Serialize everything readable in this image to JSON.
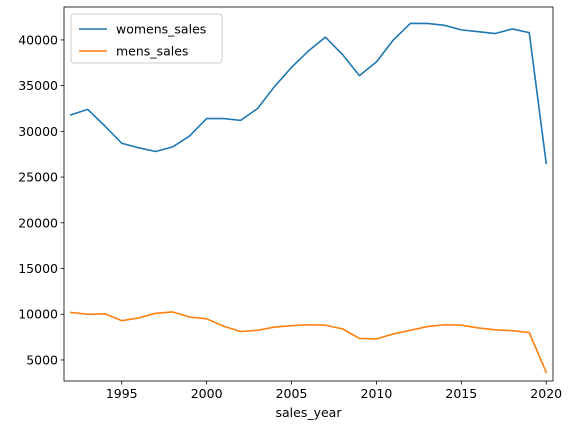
{
  "chart_data": {
    "type": "line",
    "title": "",
    "xlabel": "sales_year",
    "ylabel": "",
    "xlim": [
      1991.6,
      2020.4
    ],
    "ylim": [
      2700,
      43600
    ],
    "xticks": [
      1995,
      2000,
      2005,
      2010,
      2015,
      2020
    ],
    "yticks": [
      5000,
      10000,
      15000,
      20000,
      25000,
      30000,
      35000,
      40000,
      45000
    ],
    "grid": false,
    "legend_position": "top-left",
    "x": [
      1992,
      1993,
      1994,
      1995,
      1996,
      1997,
      1998,
      1999,
      2000,
      2001,
      2002,
      2003,
      2004,
      2005,
      2006,
      2007,
      2008,
      2009,
      2010,
      2011,
      2012,
      2013,
      2014,
      2015,
      2016,
      2017,
      2018,
      2019,
      2020
    ],
    "series": [
      {
        "name": "womens_sales",
        "color": "#1f77b4",
        "values": [
          31800,
          32400,
          30600,
          28700,
          28200,
          27800,
          28300,
          29500,
          31400,
          31400,
          31200,
          32500,
          34900,
          37000,
          38800,
          40300,
          38400,
          36100,
          37600,
          40000,
          41800,
          41800,
          41600,
          41100,
          40900,
          40700,
          41200,
          40800,
          26500
        ]
      },
      {
        "name": "mens_sales",
        "color": "#ff7f0e",
        "values": [
          10200,
          10000,
          10050,
          9300,
          9600,
          10100,
          10250,
          9700,
          9500,
          8700,
          8100,
          8250,
          8600,
          8750,
          8850,
          8800,
          8400,
          7350,
          7300,
          7850,
          8250,
          8650,
          8850,
          8800,
          8500,
          8300,
          8200,
          8000,
          3650
        ]
      }
    ]
  }
}
